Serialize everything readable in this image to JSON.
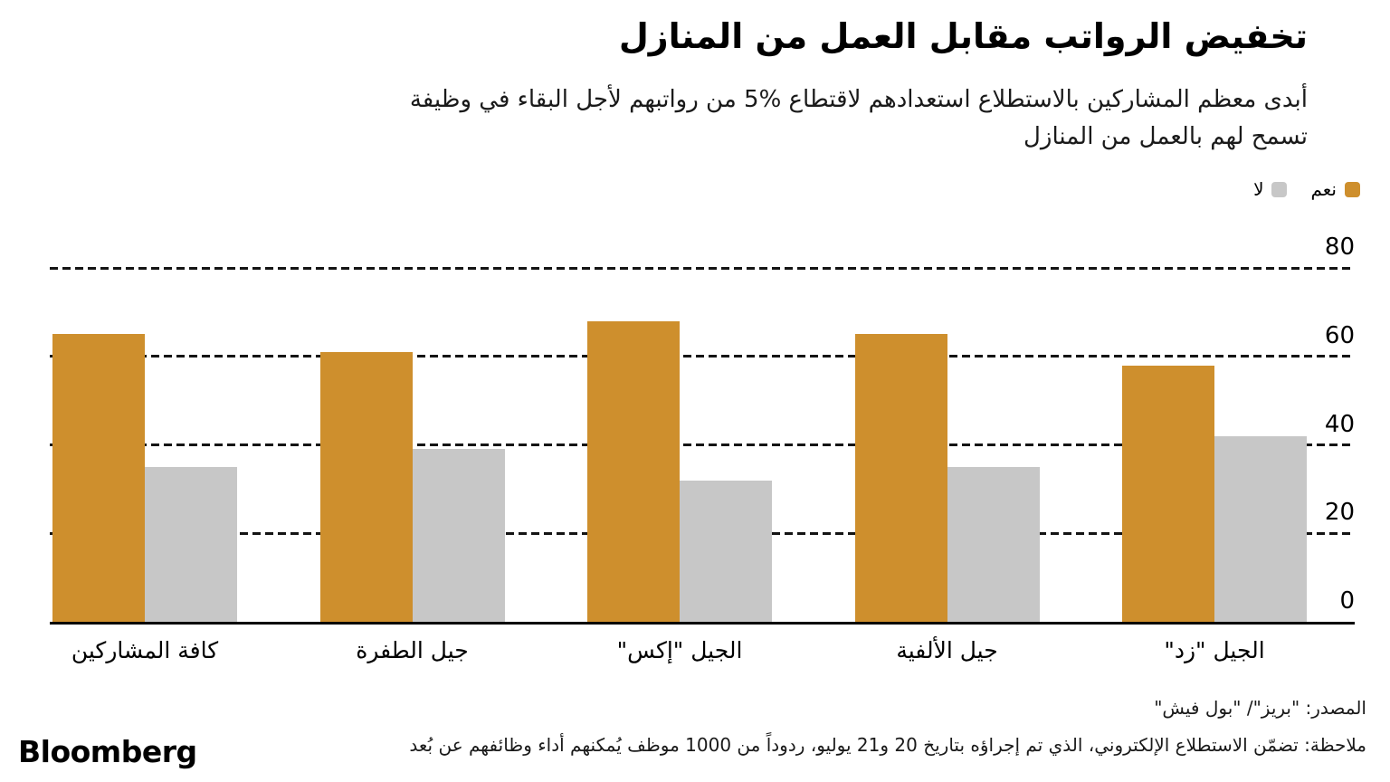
{
  "header": {
    "title": "تخفيض الرواتب مقابل العمل من المنازل",
    "subtitle_line1": "أبدى معظم المشاركين بالاستطلاع استعدادهم لاقتطاع %5 من رواتبهم لأجل البقاء في وظيفة",
    "subtitle_line2": "تسمح لهم بالعمل من المنازل"
  },
  "legend": {
    "yes_label": "نعم",
    "no_label": "لا"
  },
  "colors": {
    "yes": "#CE8F2D",
    "no": "#C7C7C7",
    "axis": "#000000",
    "gridline": "#141414"
  },
  "chart_data": {
    "type": "bar",
    "direction": "rtl",
    "title": "تخفيض الرواتب مقابل العمل من المنازل",
    "subtitle": "أبدى معظم المشاركين بالاستطلاع استعدادهم لاقتطاع %5 من رواتبهم لأجل البقاء في وظيفة تسمح لهم بالعمل من المنازل",
    "categories": [
      "كافة المشاركين",
      "جيل الطفرة",
      "الجيل \"إكس\"",
      "جيل الألفية",
      "الجيل \"زد\""
    ],
    "series": [
      {
        "name": "نعم",
        "color": "#CE8F2D",
        "values": [
          65,
          61,
          68,
          65,
          58
        ]
      },
      {
        "name": "لا",
        "color": "#C7C7C7",
        "values": [
          35,
          39,
          32,
          35,
          42
        ]
      }
    ],
    "xlabel": "",
    "ylabel": "",
    "ylim": [
      0,
      80
    ],
    "yticks": [
      0,
      20,
      40,
      60,
      80
    ],
    "grid": "dashed-horizontal",
    "legend_position": "top-right",
    "value_axis_side": "right"
  },
  "footer": {
    "source": "المصدر: \"بريز\"/ \"بول فيش\"",
    "note": "ملاحظة: تضمّن الاستطلاع الإلكتروني، الذي تم إجراؤه بتاريخ 20 و21 يوليو، ردوداً من 1000 موظف يُمكنهم أداء وظائفهم عن بُعد",
    "brand": "Bloomberg"
  }
}
